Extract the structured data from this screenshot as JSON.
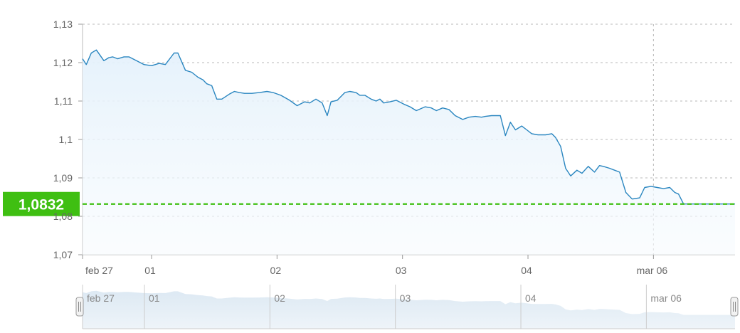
{
  "chart_data": {
    "type": "area",
    "title": "",
    "xlabel": "",
    "ylabel": "",
    "ylim": [
      1.07,
      1.13
    ],
    "y_ticks": [
      "1,07",
      "1,08",
      "1,09",
      "1,1",
      "1,11",
      "1,12",
      "1,13"
    ],
    "grid": true,
    "x_ticks": [
      {
        "label": "feb 27",
        "day": 0
      },
      {
        "label": "01",
        "day": 0.55
      },
      {
        "label": "02",
        "day": 1.55
      },
      {
        "label": "03",
        "day": 2.55
      },
      {
        "label": "04",
        "day": 3.55
      },
      {
        "label": "mar 06",
        "day": 4.55
      }
    ],
    "current_value": {
      "label": "1,0832",
      "value": 1.0832,
      "color": "#3fbf12"
    },
    "line_color": "#2a86c0",
    "series": [
      {
        "name": "",
        "x": [
          0,
          0.03,
          0.07,
          0.11,
          0.17,
          0.21,
          0.24,
          0.28,
          0.33,
          0.37,
          0.43,
          0.49,
          0.55,
          0.61,
          0.66,
          0.73,
          0.76,
          0.82,
          0.87,
          0.92,
          0.96,
          0.99,
          1.03,
          1.07,
          1.11,
          1.17,
          1.21,
          1.25,
          1.29,
          1.32,
          1.35,
          1.41,
          1.47,
          1.52,
          1.58,
          1.65,
          1.71,
          1.77,
          1.81,
          1.86,
          1.91,
          1.95,
          1.98,
          2.03,
          2.09,
          2.13,
          2.18,
          2.21,
          2.25,
          2.3,
          2.34,
          2.37,
          2.4,
          2.45,
          2.5,
          2.56,
          2.61,
          2.66,
          2.73,
          2.78,
          2.82,
          2.87,
          2.92,
          2.97,
          3.03,
          3.08,
          3.13,
          3.18,
          3.21,
          3.26,
          3.29,
          3.33,
          3.37,
          3.41,
          3.45,
          3.5,
          3.54,
          3.58,
          3.63,
          3.69,
          3.74,
          3.77,
          3.81,
          3.85,
          3.89,
          3.94,
          3.98,
          4.03,
          4.08,
          4.12,
          4.15,
          4.2,
          4.24,
          4.28,
          4.33,
          4.38,
          4.44,
          4.48,
          4.53,
          4.58,
          4.63,
          4.68,
          4.72,
          4.75,
          4.79,
          4.84,
          4.89,
          4.95,
          5.01,
          5.07,
          5.13,
          5.16,
          5.2
        ],
        "values": [
          1.121,
          1.1195,
          1.1225,
          1.1233,
          1.1205,
          1.1213,
          1.1215,
          1.121,
          1.1215,
          1.1215,
          1.1205,
          1.1195,
          1.1192,
          1.1198,
          1.1195,
          1.1225,
          1.1225,
          1.118,
          1.1175,
          1.1162,
          1.1155,
          1.1145,
          1.114,
          1.1105,
          1.1105,
          1.1118,
          1.1125,
          1.1122,
          1.112,
          1.112,
          1.112,
          1.1122,
          1.1125,
          1.1122,
          1.1115,
          1.1102,
          1.1088,
          1.1098,
          1.1095,
          1.1105,
          1.1095,
          1.1062,
          1.1098,
          1.1102,
          1.1122,
          1.1125,
          1.1122,
          1.1115,
          1.1115,
          1.1105,
          1.11,
          1.1105,
          1.1095,
          1.1098,
          1.1102,
          1.1092,
          1.1085,
          1.1075,
          1.1085,
          1.1082,
          1.1075,
          1.1082,
          1.1078,
          1.1062,
          1.1052,
          1.1058,
          1.106,
          1.1058,
          1.106,
          1.1062,
          1.1062,
          1.1062,
          1.101,
          1.1045,
          1.1025,
          1.1035,
          1.1025,
          1.1015,
          1.1012,
          1.1012,
          1.1015,
          1.1005,
          1.0982,
          1.0925,
          1.0905,
          1.092,
          1.0912,
          1.093,
          1.0915,
          1.0932,
          1.093,
          1.0925,
          1.092,
          1.0915,
          1.0862,
          1.0845,
          1.0848,
          1.0875,
          1.0878,
          1.0875,
          1.0872,
          1.0875,
          1.0862,
          1.0858,
          1.0832,
          1.0832,
          1.0832,
          1.0832,
          1.0832,
          1.0832,
          1.0832,
          1.0832,
          1.0832
        ]
      }
    ],
    "navigator": {
      "x_ticks": [
        {
          "label": "feb 27",
          "day": 0
        },
        {
          "label": "01",
          "day": 0.55
        },
        {
          "label": "02",
          "day": 1.55
        },
        {
          "label": "03",
          "day": 2.55
        },
        {
          "label": "04",
          "day": 3.55
        },
        {
          "label": "mar 06",
          "day": 4.55
        }
      ]
    }
  }
}
